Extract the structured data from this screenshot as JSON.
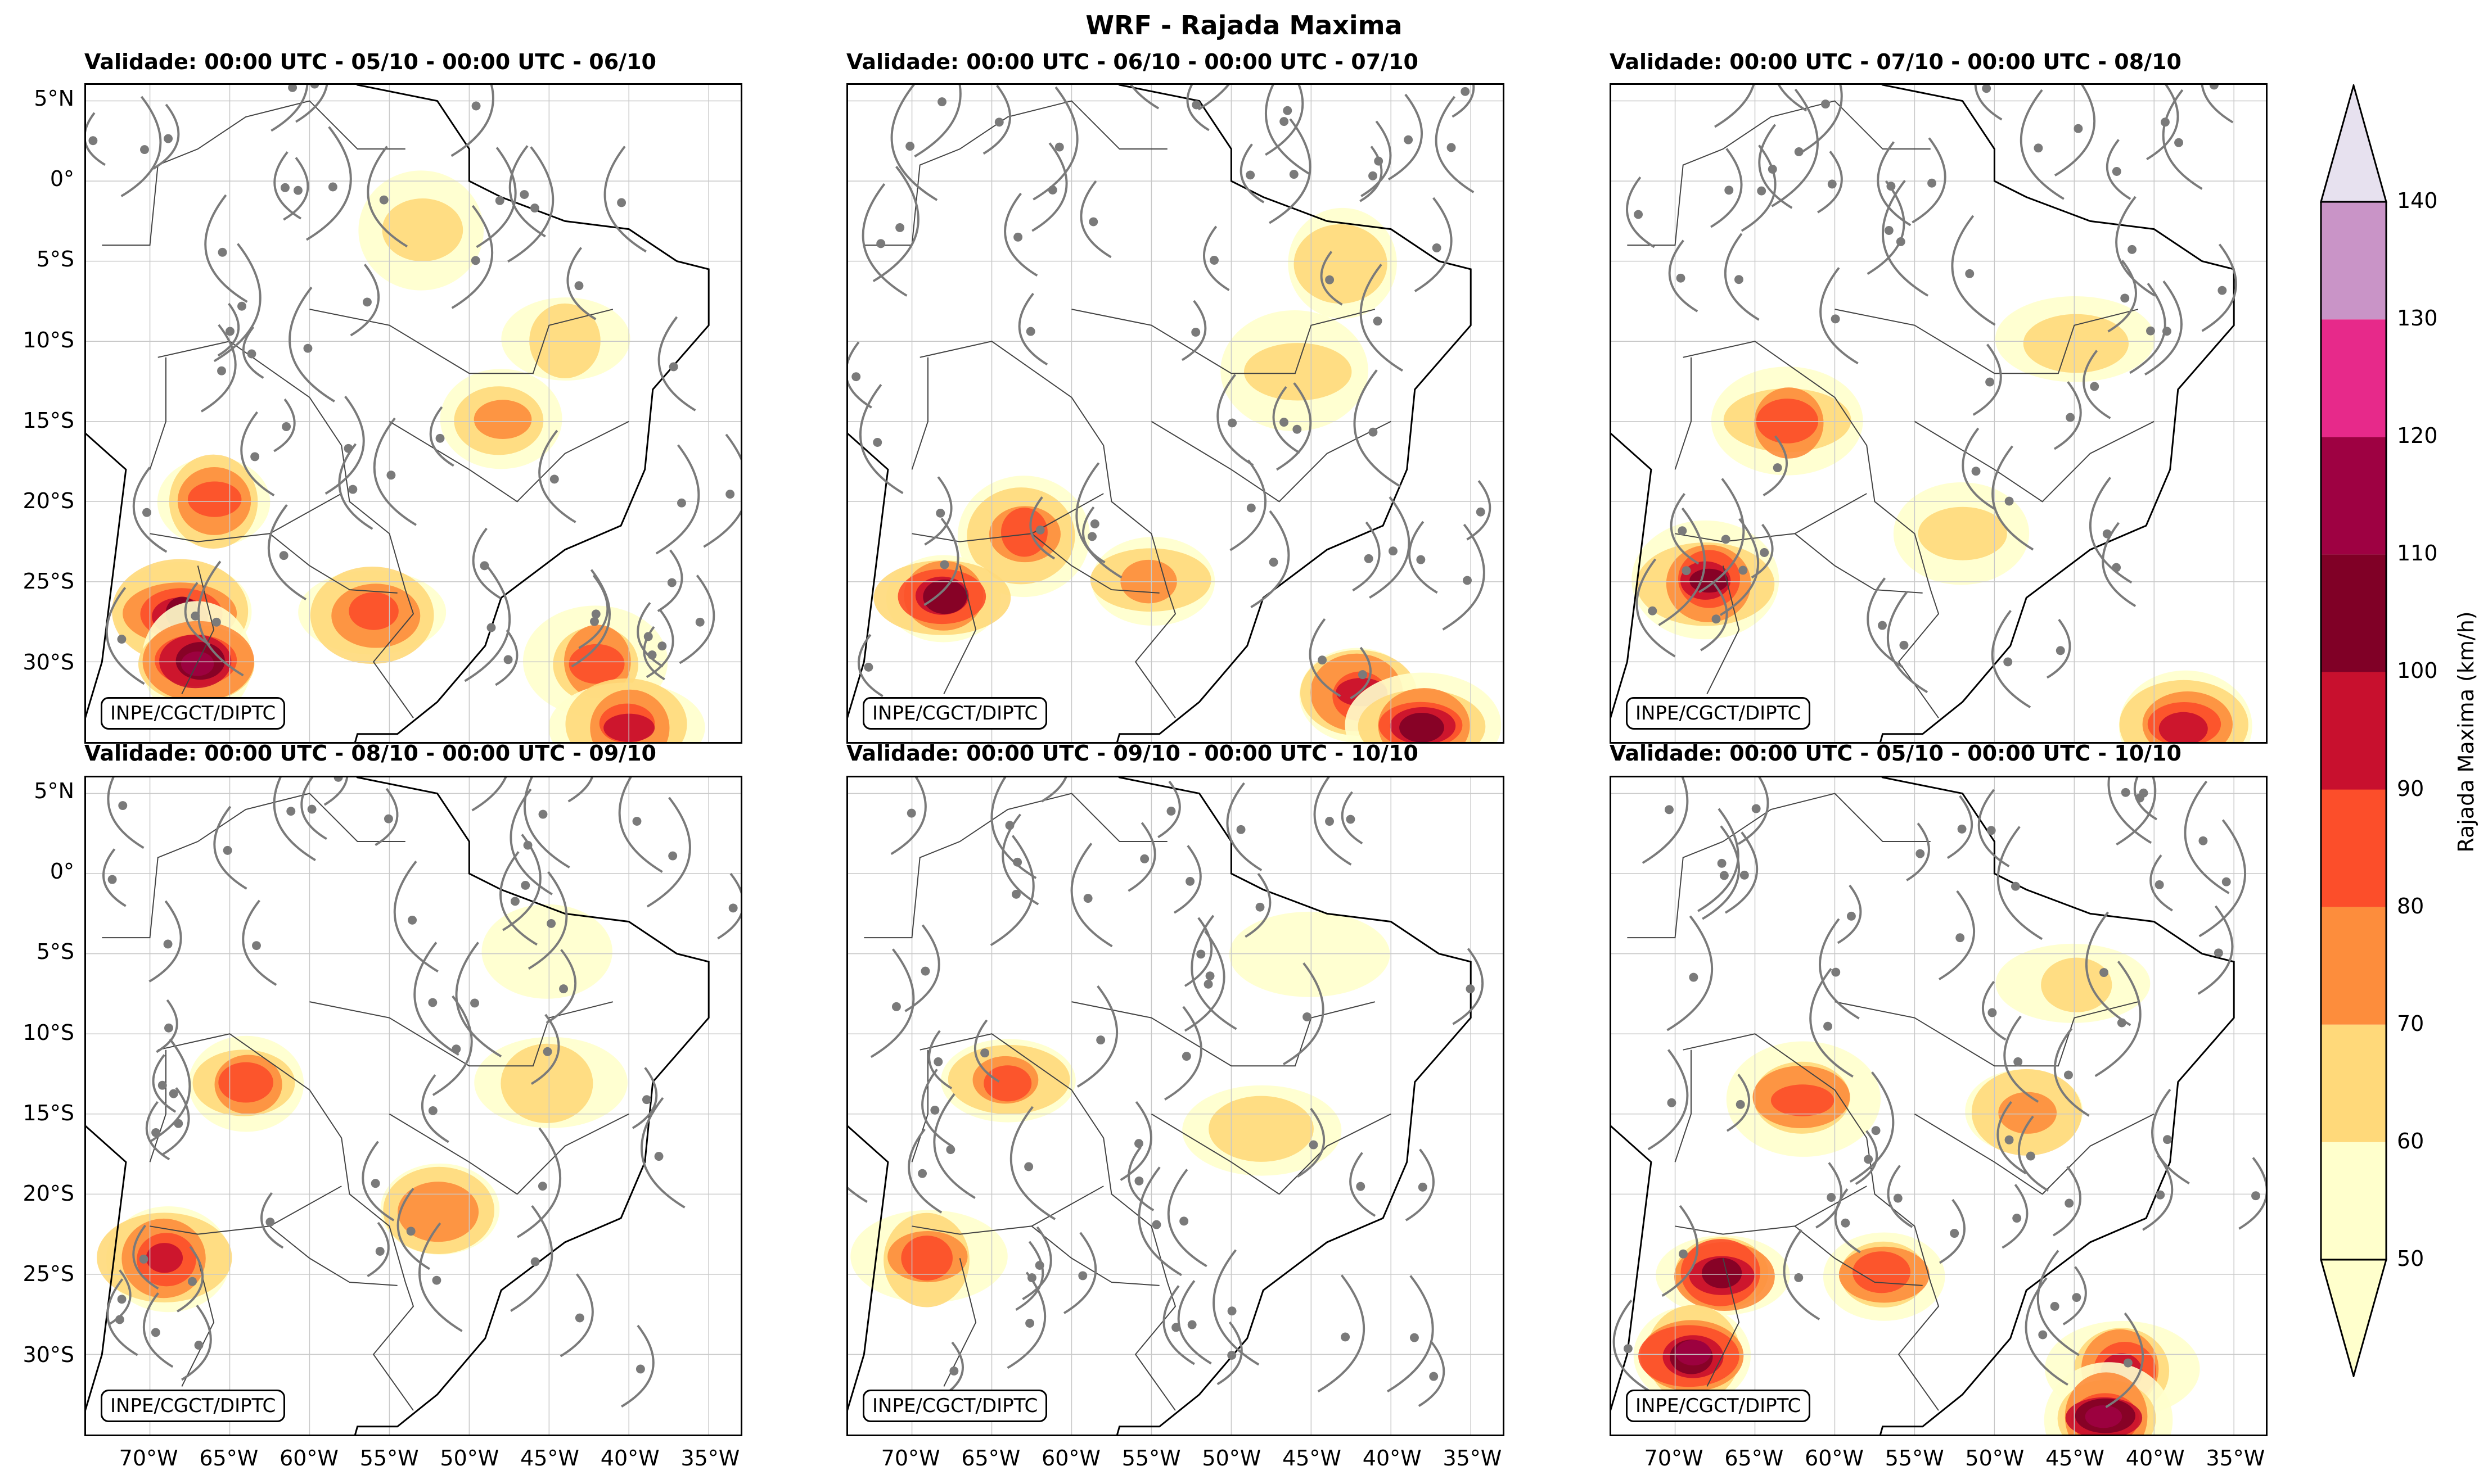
{
  "figure": {
    "title": "WRF - Rajada Maxima"
  },
  "panels": [
    {
      "title": "Validade: 00:00 UTC - 05/10 - 00:00 UTC - 06/10",
      "credit": "INPE/CGCT/DIPTC",
      "blobs": [
        {
          "lon": -66,
          "lat": -20,
          "lvl": 3
        },
        {
          "lon": -68,
          "lat": -27,
          "lvl": 5
        },
        {
          "lon": -67,
          "lat": -30,
          "lvl": 6
        },
        {
          "lon": -56,
          "lat": -27,
          "lvl": 3
        },
        {
          "lon": -42,
          "lat": -30,
          "lvl": 3
        },
        {
          "lon": -40,
          "lat": -34,
          "lvl": 4
        },
        {
          "lon": -48,
          "lat": -15,
          "lvl": 2
        },
        {
          "lon": -44,
          "lat": -10,
          "lvl": 1
        },
        {
          "lon": -53,
          "lat": -3,
          "lvl": 1
        }
      ]
    },
    {
      "title": "Validade: 00:00 UTC - 06/10 - 00:00 UTC - 07/10",
      "credit": "INPE/CGCT/DIPTC",
      "blobs": [
        {
          "lon": -63,
          "lat": -22,
          "lvl": 3
        },
        {
          "lon": -68,
          "lat": -26,
          "lvl": 5
        },
        {
          "lon": -55,
          "lat": -25,
          "lvl": 2
        },
        {
          "lon": -42,
          "lat": -32,
          "lvl": 4
        },
        {
          "lon": -38,
          "lat": -34,
          "lvl": 5
        },
        {
          "lon": -46,
          "lat": -12,
          "lvl": 1
        },
        {
          "lon": -43,
          "lat": -5,
          "lvl": 1
        }
      ]
    },
    {
      "title": "Validade: 00:00 UTC - 07/10 - 00:00 UTC - 08/10",
      "credit": "INPE/CGCT/DIPTC",
      "blobs": [
        {
          "lon": -63,
          "lat": -15,
          "lvl": 3
        },
        {
          "lon": -68,
          "lat": -25,
          "lvl": 5
        },
        {
          "lon": -52,
          "lat": -22,
          "lvl": 1
        },
        {
          "lon": -38,
          "lat": -34,
          "lvl": 4
        },
        {
          "lon": -45,
          "lat": -10,
          "lvl": 1
        }
      ]
    },
    {
      "title": "Validade: 00:00 UTC - 08/10 - 00:00 UTC - 09/10",
      "credit": "INPE/CGCT/DIPTC",
      "blobs": [
        {
          "lon": -64,
          "lat": -13,
          "lvl": 3
        },
        {
          "lon": -69,
          "lat": -24,
          "lvl": 4
        },
        {
          "lon": -52,
          "lat": -21,
          "lvl": 2
        },
        {
          "lon": -45,
          "lat": -13,
          "lvl": 1
        },
        {
          "lon": -45,
          "lat": -5,
          "lvl": 0
        }
      ]
    },
    {
      "title": "Validade: 00:00 UTC - 09/10 - 00:00 UTC - 10/10",
      "credit": "INPE/CGCT/DIPTC",
      "blobs": [
        {
          "lon": -64,
          "lat": -13,
          "lvl": 3
        },
        {
          "lon": -69,
          "lat": -24,
          "lvl": 3
        },
        {
          "lon": -48,
          "lat": -16,
          "lvl": 1
        },
        {
          "lon": -45,
          "lat": -5,
          "lvl": 0
        }
      ]
    },
    {
      "title": "Validade: 00:00 UTC - 05/10 - 00:00 UTC - 10/10",
      "credit": "INPE/CGCT/DIPTC",
      "blobs": [
        {
          "lon": -62,
          "lat": -14,
          "lvl": 3
        },
        {
          "lon": -67,
          "lat": -25,
          "lvl": 5
        },
        {
          "lon": -69,
          "lat": -30,
          "lvl": 6
        },
        {
          "lon": -57,
          "lat": -25,
          "lvl": 3
        },
        {
          "lon": -42,
          "lat": -31,
          "lvl": 4
        },
        {
          "lon": -43,
          "lat": -34,
          "lvl": 6
        },
        {
          "lon": -48,
          "lat": -15,
          "lvl": 2
        },
        {
          "lon": -45,
          "lat": -7,
          "lvl": 1
        }
      ]
    }
  ],
  "axes": {
    "lat_labels": [
      "5°N",
      "0°",
      "5°S",
      "10°S",
      "15°S",
      "20°S",
      "25°S",
      "30°S"
    ],
    "lat_values": [
      5,
      0,
      -5,
      -10,
      -15,
      -20,
      -25,
      -30
    ],
    "lon_labels": [
      "70°W",
      "65°W",
      "60°W",
      "55°W",
      "50°W",
      "45°W",
      "40°W",
      "35°W"
    ],
    "lon_values": [
      -70,
      -65,
      -60,
      -55,
      -50,
      -45,
      -40,
      -35
    ],
    "extent": {
      "lon_min": -74,
      "lon_max": -33,
      "lat_min": -35,
      "lat_max": 6
    }
  },
  "colorbar": {
    "label": "Rajada Maxima (km/h)",
    "ticks": [
      "50",
      "60",
      "70",
      "80",
      "90",
      "100",
      "110",
      "120",
      "130",
      "140"
    ],
    "colors": [
      "#ffffcc",
      "#ffd97a",
      "#fd8d3c",
      "#fc4e2a",
      "#c8102e",
      "#800026",
      "#9e0142",
      "#e7298a",
      "#c994c7",
      "#e7e1ef"
    ]
  }
}
